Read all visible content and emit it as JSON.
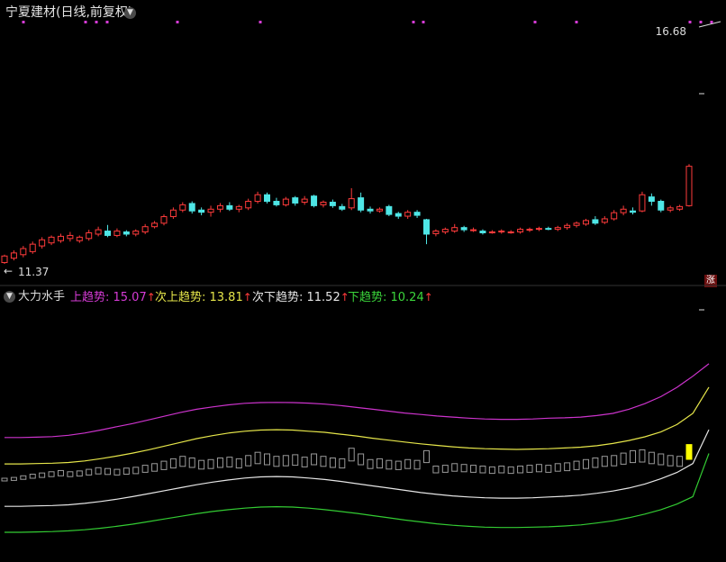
{
  "header": {
    "title": "宁夏建材(日线,前复权)",
    "high_label": "16.68",
    "low_label": "11.37",
    "arrow_left": "←",
    "rise_badge": "涨"
  },
  "indicator": {
    "name": "大力水手",
    "items": [
      {
        "label": "上趋势: 15.07",
        "color": "#d63bd6",
        "arrow": "↑"
      },
      {
        "label": "次上趋势: 13.81",
        "color": "#e6e64a",
        "arrow": "↑"
      },
      {
        "label": "次下趋势: 11.52",
        "color": "#e6e6e6",
        "arrow": "↑"
      },
      {
        "label": "下趋势: 10.24",
        "color": "#3bd63b",
        "arrow": "↑"
      }
    ]
  },
  "colors": {
    "up": "#ff3b3b",
    "down": "#4ee6e6",
    "magenta_line": "#cc33cc",
    "yellow_line": "#e6e64a",
    "white_line": "#e6e6e6",
    "green_line": "#33cc33",
    "volume_bar": "#9a9a9a",
    "volume_highlight": "#ffff00",
    "markers": "#d63bd6"
  },
  "chart_data": [
    {
      "type": "candlestick",
      "title": "宁夏建材(日线,前复权)",
      "price_range": [
        11.37,
        16.68
      ],
      "candles": [
        [
          11.4,
          11.55,
          11.37,
          11.58
        ],
        [
          11.5,
          11.62,
          11.45,
          11.68
        ],
        [
          11.58,
          11.72,
          11.52,
          11.78
        ],
        [
          11.65,
          11.82,
          11.6,
          11.88
        ],
        [
          11.78,
          11.92,
          11.72,
          11.98
        ],
        [
          11.85,
          11.98,
          11.8,
          12.02
        ],
        [
          11.9,
          12.0,
          11.85,
          12.06
        ],
        [
          11.95,
          12.02,
          11.88,
          12.1
        ],
        [
          11.9,
          11.98,
          11.85,
          12.02
        ],
        [
          11.95,
          12.08,
          11.9,
          12.15
        ],
        [
          12.05,
          12.15,
          12.0,
          12.22
        ],
        [
          12.12,
          12.02,
          11.98,
          12.26
        ],
        [
          12.02,
          12.12,
          11.98,
          12.18
        ],
        [
          12.1,
          12.05,
          12.0,
          12.14
        ],
        [
          12.05,
          12.12,
          12.0,
          12.16
        ],
        [
          12.1,
          12.22,
          12.05,
          12.28
        ],
        [
          12.22,
          12.3,
          12.18,
          12.35
        ],
        [
          12.3,
          12.45,
          12.25,
          12.5
        ],
        [
          12.45,
          12.6,
          12.4,
          12.66
        ],
        [
          12.6,
          12.72,
          12.55,
          12.78
        ],
        [
          12.75,
          12.58,
          12.52,
          12.8
        ],
        [
          12.6,
          12.55,
          12.48,
          12.66
        ],
        [
          12.55,
          12.62,
          12.45,
          12.7
        ],
        [
          12.62,
          12.7,
          12.55,
          12.76
        ],
        [
          12.7,
          12.62,
          12.58,
          12.78
        ],
        [
          12.62,
          12.68,
          12.55,
          12.72
        ],
        [
          12.65,
          12.8,
          12.6,
          12.86
        ],
        [
          12.8,
          12.95,
          12.75,
          13.02
        ],
        [
          12.95,
          12.8,
          12.75,
          13.0
        ],
        [
          12.8,
          12.72,
          12.68,
          12.88
        ],
        [
          12.72,
          12.85,
          12.68,
          12.9
        ],
        [
          12.88,
          12.76,
          12.7,
          12.92
        ],
        [
          12.78,
          12.85,
          12.72,
          12.92
        ],
        [
          12.92,
          12.7,
          12.66,
          12.95
        ],
        [
          12.72,
          12.78,
          12.66,
          12.82
        ],
        [
          12.78,
          12.7,
          12.65,
          12.84
        ],
        [
          12.68,
          12.62,
          12.58,
          12.74
        ],
        [
          12.65,
          12.86,
          12.6,
          13.1
        ],
        [
          12.88,
          12.6,
          12.55,
          13.0
        ],
        [
          12.62,
          12.58,
          12.52,
          12.68
        ],
        [
          12.58,
          12.62,
          12.54,
          12.66
        ],
        [
          12.68,
          12.5,
          12.46,
          12.72
        ],
        [
          12.52,
          12.46,
          12.4,
          12.56
        ],
        [
          12.46,
          12.55,
          12.4,
          12.6
        ],
        [
          12.55,
          12.48,
          12.42,
          12.6
        ],
        [
          12.38,
          12.05,
          11.82,
          12.4
        ],
        [
          12.06,
          12.12,
          12.0,
          12.16
        ],
        [
          12.1,
          12.16,
          12.05,
          12.2
        ],
        [
          12.12,
          12.2,
          12.08,
          12.28
        ],
        [
          12.2,
          12.15,
          12.1,
          12.24
        ],
        [
          12.15,
          12.15,
          12.1,
          12.2
        ],
        [
          12.12,
          12.08,
          12.04,
          12.16
        ],
        [
          12.1,
          12.1,
          12.06,
          12.14
        ],
        [
          12.1,
          12.12,
          12.06,
          12.16
        ],
        [
          12.1,
          12.1,
          12.06,
          12.14
        ],
        [
          12.1,
          12.16,
          12.06,
          12.2
        ],
        [
          12.14,
          12.16,
          12.1,
          12.2
        ],
        [
          12.16,
          12.18,
          12.12,
          12.22
        ],
        [
          12.18,
          12.16,
          12.14,
          12.22
        ],
        [
          12.16,
          12.2,
          12.12,
          12.24
        ],
        [
          12.2,
          12.25,
          12.15,
          12.3
        ],
        [
          12.25,
          12.3,
          12.2,
          12.34
        ],
        [
          12.28,
          12.36,
          12.24,
          12.4
        ],
        [
          12.38,
          12.3,
          12.26,
          12.46
        ],
        [
          12.32,
          12.4,
          12.28,
          12.46
        ],
        [
          12.4,
          12.54,
          12.36,
          12.6
        ],
        [
          12.54,
          12.62,
          12.48,
          12.7
        ],
        [
          12.58,
          12.55,
          12.5,
          12.66
        ],
        [
          12.58,
          12.95,
          12.55,
          13.02
        ],
        [
          12.9,
          12.8,
          12.7,
          12.98
        ],
        [
          12.8,
          12.6,
          12.55,
          12.84
        ],
        [
          12.6,
          12.65,
          12.55,
          12.7
        ],
        [
          12.62,
          12.68,
          12.58,
          12.72
        ],
        [
          12.7,
          13.6,
          12.68,
          13.65
        ]
      ]
    },
    {
      "type": "bar",
      "series": [
        {
          "values": [
            0.2,
            0.22,
            0.26,
            0.3,
            0.33,
            0.36,
            0.39,
            0.36,
            0.38,
            0.42,
            0.46,
            0.44,
            0.42,
            0.45,
            0.47,
            0.52,
            0.56,
            0.62,
            0.68,
            0.74,
            0.7,
            0.64,
            0.66,
            0.7,
            0.72,
            0.68,
            0.76,
            0.84,
            0.8,
            0.74,
            0.76,
            0.78,
            0.72,
            0.8,
            0.74,
            0.7,
            0.68,
            0.94,
            0.8,
            0.66,
            0.68,
            0.64,
            0.62,
            0.66,
            0.64,
            0.88,
            0.5,
            0.52,
            0.56,
            0.54,
            0.52,
            0.5,
            0.48,
            0.5,
            0.48,
            0.5,
            0.52,
            0.54,
            0.52,
            0.56,
            0.58,
            0.62,
            0.66,
            0.7,
            0.74,
            0.76,
            0.82,
            0.88,
            0.9,
            0.84,
            0.8,
            0.76,
            0.74,
            1.0
          ]
        }
      ]
    },
    {
      "type": "line",
      "series": [
        {
          "name": "上趋势",
          "values": [
            11.1,
            11.1,
            11.12,
            11.15,
            11.22,
            11.34,
            11.5,
            11.68,
            11.85,
            12.05,
            12.25,
            12.45,
            12.62,
            12.75,
            12.86,
            12.94,
            12.98,
            12.99,
            12.98,
            12.95,
            12.9,
            12.82,
            12.72,
            12.62,
            12.52,
            12.42,
            12.34,
            12.26,
            12.2,
            12.14,
            12.1,
            12.08,
            12.08,
            12.1,
            12.14,
            12.16,
            12.2,
            12.28,
            12.4,
            12.62,
            12.92,
            13.3,
            13.8,
            14.4,
            15.07
          ]
        },
        {
          "name": "次上趋势",
          "values": [
            9.68,
            9.68,
            9.7,
            9.72,
            9.76,
            9.84,
            9.96,
            10.1,
            10.26,
            10.44,
            10.64,
            10.84,
            11.04,
            11.2,
            11.34,
            11.44,
            11.5,
            11.52,
            11.5,
            11.44,
            11.38,
            11.28,
            11.18,
            11.06,
            10.96,
            10.86,
            10.76,
            10.68,
            10.6,
            10.54,
            10.5,
            10.48,
            10.46,
            10.48,
            10.5,
            10.54,
            10.58,
            10.66,
            10.78,
            10.94,
            11.14,
            11.4,
            11.8,
            12.4,
            13.81
          ]
        },
        {
          "name": "次下趋势",
          "values": [
            7.4,
            7.4,
            7.42,
            7.44,
            7.48,
            7.56,
            7.66,
            7.78,
            7.92,
            8.08,
            8.24,
            8.4,
            8.56,
            8.7,
            8.82,
            8.92,
            8.98,
            9.0,
            8.98,
            8.92,
            8.84,
            8.74,
            8.62,
            8.5,
            8.38,
            8.26,
            8.14,
            8.04,
            7.96,
            7.9,
            7.86,
            7.84,
            7.84,
            7.86,
            7.9,
            7.94,
            8.0,
            8.1,
            8.22,
            8.38,
            8.6,
            8.88,
            9.22,
            9.7,
            11.52
          ]
        },
        {
          "name": "下趋势",
          "values": [
            6.0,
            6.0,
            6.02,
            6.04,
            6.08,
            6.14,
            6.22,
            6.32,
            6.44,
            6.58,
            6.72,
            6.86,
            7.0,
            7.12,
            7.22,
            7.3,
            7.36,
            7.38,
            7.36,
            7.3,
            7.22,
            7.12,
            7.02,
            6.9,
            6.78,
            6.66,
            6.56,
            6.46,
            6.38,
            6.32,
            6.28,
            6.26,
            6.26,
            6.28,
            6.3,
            6.34,
            6.4,
            6.5,
            6.62,
            6.78,
            6.98,
            7.22,
            7.52,
            7.92,
            10.24
          ]
        }
      ]
    }
  ]
}
